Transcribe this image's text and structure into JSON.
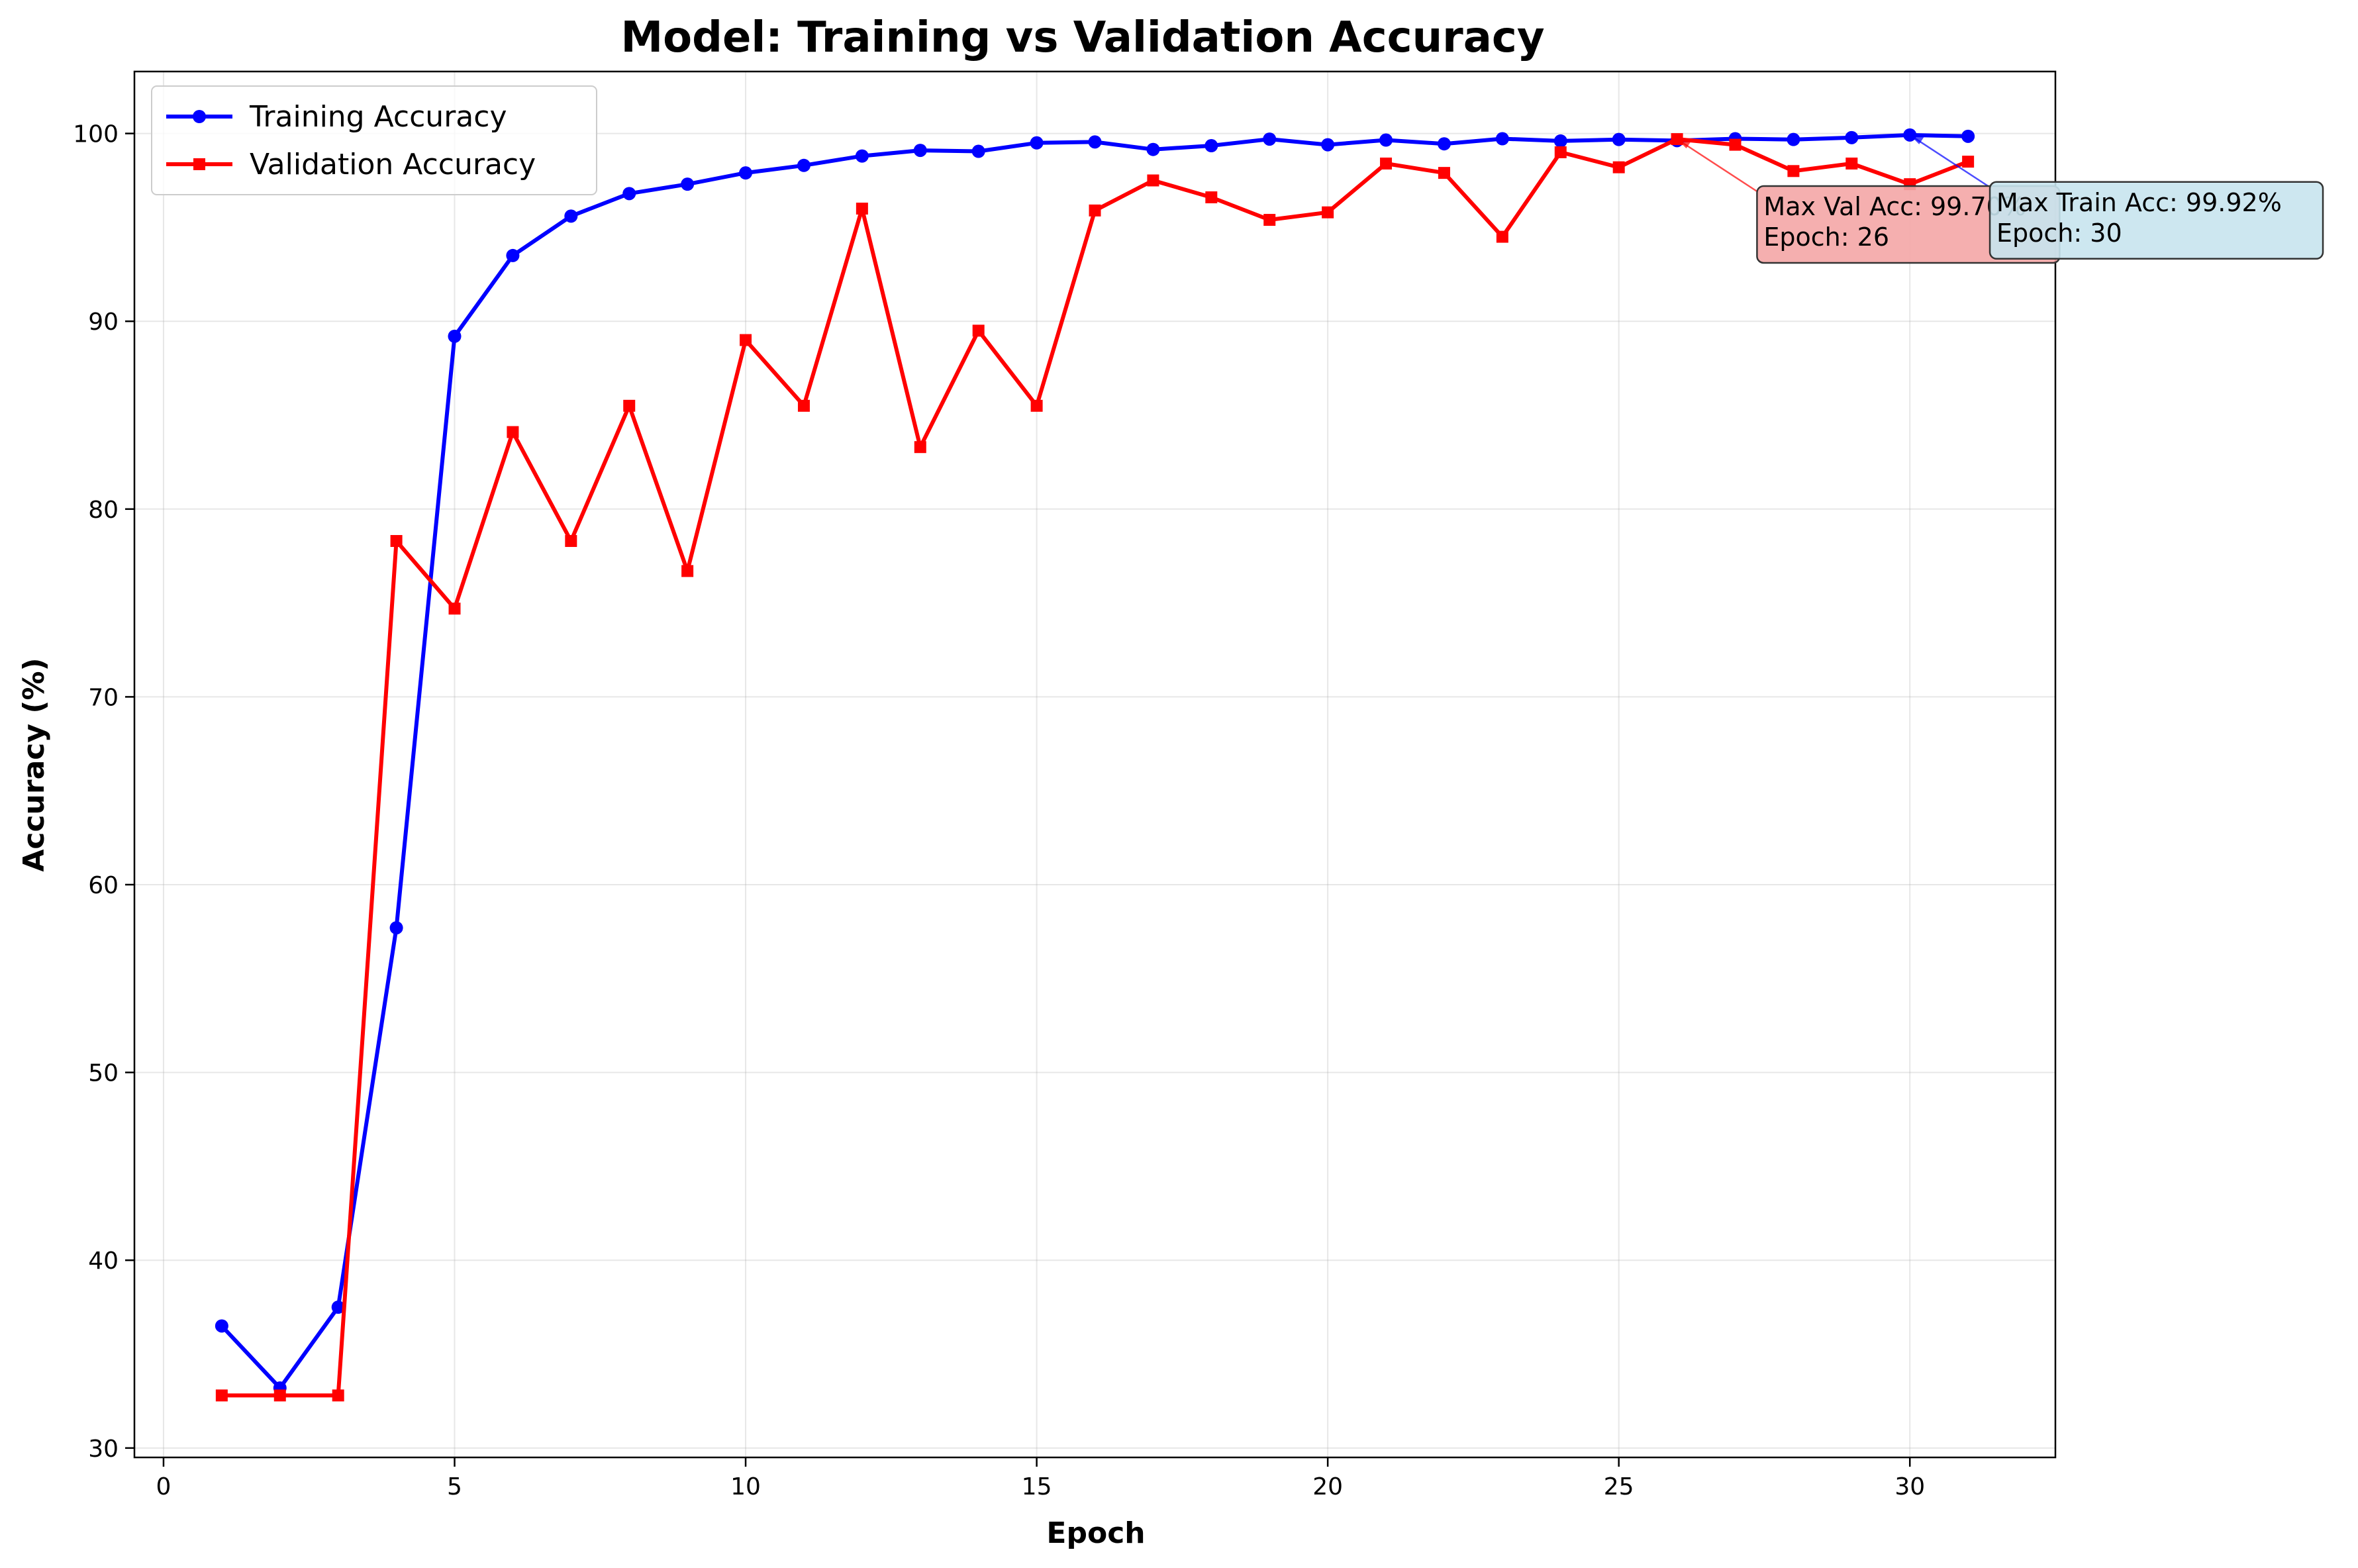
{
  "chart_data": {
    "type": "line",
    "title": "Model: Training vs Validation Accuracy",
    "xlabel": "Epoch",
    "ylabel": "Accuracy (%)",
    "xlim": [
      -0.5,
      32.5
    ],
    "ylim": [
      29.5,
      103.3
    ],
    "xticks": [
      0,
      5,
      10,
      15,
      20,
      25,
      30
    ],
    "yticks": [
      30,
      40,
      50,
      60,
      70,
      80,
      90,
      100
    ],
    "grid": true,
    "legend_position": "upper-left",
    "x": [
      1,
      2,
      3,
      4,
      5,
      6,
      7,
      8,
      9,
      10,
      11,
      12,
      13,
      14,
      15,
      16,
      17,
      18,
      19,
      20,
      21,
      22,
      23,
      24,
      25,
      26,
      27,
      28,
      29,
      30,
      31
    ],
    "series": [
      {
        "name": "Training Accuracy",
        "color": "#0000ff",
        "marker": "circle",
        "values": [
          36.5,
          33.2,
          37.5,
          57.7,
          89.2,
          93.5,
          95.6,
          96.8,
          97.3,
          97.9,
          98.3,
          98.8,
          99.1,
          99.05,
          99.5,
          99.55,
          99.15,
          99.35,
          99.7,
          99.4,
          99.65,
          99.45,
          99.72,
          99.6,
          99.68,
          99.62,
          99.72,
          99.68,
          99.78,
          99.92,
          99.85
        ]
      },
      {
        "name": "Validation Accuracy",
        "color": "#ff0000",
        "marker": "square",
        "values": [
          32.8,
          32.8,
          32.8,
          78.3,
          74.7,
          84.1,
          78.3,
          85.5,
          76.7,
          89.0,
          85.5,
          96.0,
          83.3,
          89.5,
          85.5,
          95.9,
          97.5,
          96.6,
          95.4,
          95.8,
          98.4,
          97.9,
          94.5,
          99.0,
          98.2,
          99.7,
          99.4,
          98.0,
          98.4,
          97.3,
          98.5
        ]
      }
    ],
    "annotations": [
      {
        "lines": [
          "Max Val Acc: 99.70%",
          "Epoch: 26"
        ],
        "target": [
          26,
          99.7
        ],
        "anchor": "below-right",
        "box_color": "#f4a6a6",
        "arrow_color": "#ff0000"
      },
      {
        "lines": [
          "Max Train Acc: 99.92%",
          "Epoch: 30"
        ],
        "target": [
          30,
          99.92
        ],
        "anchor": "below-right",
        "box_color": "#c8e4ee",
        "arrow_color": "#0000ff"
      }
    ]
  }
}
